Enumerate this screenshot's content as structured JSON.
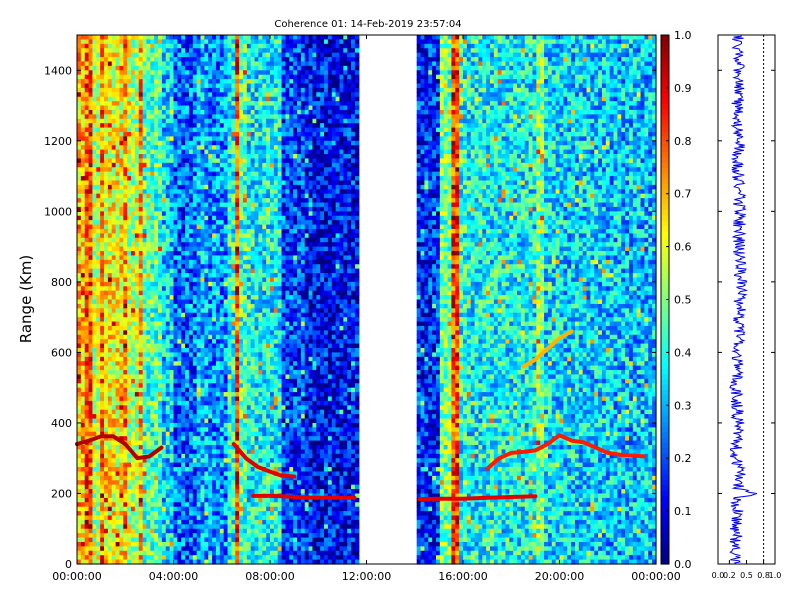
{
  "chart_data": [
    {
      "type": "heatmap",
      "title": "Coherence 01: 14-Feb-2019 23:57:04",
      "ylabel": "Range (Km)",
      "xlabel": "",
      "x_ticks": [
        "00:00:00",
        "04:00:00",
        "08:00:00",
        "12:00:00",
        "16:00:00",
        "20:00:00",
        "00:00:00"
      ],
      "y_ticks": [
        "0",
        "200",
        "400",
        "600",
        "800",
        "1000",
        "1200",
        "1400"
      ],
      "xlim_hours": [
        0,
        24
      ],
      "ylim": [
        0,
        1500
      ],
      "data_gap_hours": [
        11.75,
        14.1
      ],
      "colormap": "jet",
      "colorbar": {
        "range": [
          0,
          1
        ],
        "ticks": [
          "0.0",
          "0.1",
          "0.2",
          "0.3",
          "0.4",
          "0.5",
          "0.6",
          "0.7",
          "0.8",
          "0.9",
          "1.0"
        ]
      },
      "vertical_streaks": [
        {
          "start_h": 0.0,
          "end_h": 0.4,
          "value": 0.68
        },
        {
          "start_h": 0.4,
          "end_h": 0.6,
          "value": 0.8
        },
        {
          "start_h": 0.6,
          "end_h": 1.0,
          "value": 0.55
        },
        {
          "start_h": 1.0,
          "end_h": 1.2,
          "value": 0.78
        },
        {
          "start_h": 1.2,
          "end_h": 1.9,
          "value": 0.62
        },
        {
          "start_h": 1.9,
          "end_h": 2.1,
          "value": 0.72
        },
        {
          "start_h": 2.1,
          "end_h": 2.6,
          "value": 0.55
        },
        {
          "start_h": 2.6,
          "end_h": 2.8,
          "value": 0.7
        },
        {
          "start_h": 2.8,
          "end_h": 3.5,
          "value": 0.45
        },
        {
          "start_h": 3.5,
          "end_h": 4.0,
          "value": 0.34
        },
        {
          "start_h": 4.0,
          "end_h": 5.0,
          "value": 0.22
        },
        {
          "start_h": 5.0,
          "end_h": 5.4,
          "value": 0.3
        },
        {
          "start_h": 5.4,
          "end_h": 6.2,
          "value": 0.26
        },
        {
          "start_h": 6.2,
          "end_h": 6.5,
          "value": 0.4
        },
        {
          "start_h": 6.5,
          "end_h": 6.7,
          "value": 0.82
        },
        {
          "start_h": 6.7,
          "end_h": 7.0,
          "value": 0.45
        },
        {
          "start_h": 7.0,
          "end_h": 8.5,
          "value": 0.38
        },
        {
          "start_h": 8.5,
          "end_h": 9.5,
          "value": 0.18
        },
        {
          "start_h": 9.5,
          "end_h": 11.75,
          "value": 0.12
        },
        {
          "start_h": 14.1,
          "end_h": 15.0,
          "value": 0.16
        },
        {
          "start_h": 15.0,
          "end_h": 15.5,
          "value": 0.48
        },
        {
          "start_h": 15.5,
          "end_h": 15.9,
          "value": 0.82
        },
        {
          "start_h": 15.9,
          "end_h": 16.2,
          "value": 0.4
        },
        {
          "start_h": 16.2,
          "end_h": 19.0,
          "value": 0.38
        },
        {
          "start_h": 19.0,
          "end_h": 19.4,
          "value": 0.5
        },
        {
          "start_h": 19.4,
          "end_h": 20.0,
          "value": 0.36
        },
        {
          "start_h": 20.0,
          "end_h": 22.0,
          "value": 0.34
        },
        {
          "start_h": 22.0,
          "end_h": 24.0,
          "value": 0.32
        }
      ],
      "echo_traces": [
        {
          "value": 0.95,
          "points": [
            [
              0.0,
              340
            ],
            [
              0.5,
              350
            ],
            [
              1.0,
              362
            ],
            [
              1.5,
              362
            ],
            [
              2.0,
              340
            ],
            [
              2.5,
              300
            ],
            [
              3.0,
              305
            ],
            [
              3.5,
              330
            ]
          ]
        },
        {
          "value": 0.9,
          "points": [
            [
              6.5,
              340
            ],
            [
              7.0,
              300
            ],
            [
              7.5,
              275
            ],
            [
              8.0,
              262
            ],
            [
              8.5,
              250
            ],
            [
              9.0,
              248
            ]
          ]
        },
        {
          "value": 0.9,
          "points": [
            [
              7.3,
              193
            ],
            [
              8.0,
              193
            ],
            [
              8.5,
              192
            ],
            [
              9.0,
              190
            ],
            [
              10.0,
              188
            ],
            [
              11.5,
              188
            ]
          ]
        },
        {
          "value": 0.9,
          "points": [
            [
              14.2,
              184
            ],
            [
              15.0,
              185
            ],
            [
              16.0,
              185
            ],
            [
              17.0,
              188
            ],
            [
              18.0,
              190
            ],
            [
              19.0,
              192
            ]
          ]
        },
        {
          "value": 0.85,
          "points": [
            [
              17.0,
              270
            ],
            [
              17.5,
              300
            ],
            [
              18.0,
              315
            ],
            [
              18.5,
              318
            ],
            [
              19.0,
              322
            ],
            [
              19.5,
              340
            ],
            [
              20.0,
              365
            ],
            [
              20.5,
              350
            ],
            [
              21.0,
              345
            ],
            [
              21.5,
              330
            ],
            [
              22.0,
              315
            ],
            [
              22.5,
              310
            ],
            [
              23.5,
              305
            ]
          ]
        },
        {
          "value": 0.7,
          "points": [
            [
              18.5,
              560
            ],
            [
              19.0,
              580
            ],
            [
              19.5,
              610
            ],
            [
              20.0,
              640
            ],
            [
              20.5,
              660
            ]
          ]
        }
      ]
    },
    {
      "type": "line",
      "xlim": [
        0,
        1
      ],
      "x_ticks": [
        "0.0",
        "0.2",
        "0.5",
        "0.8",
        "1.0"
      ],
      "ylim": [
        0,
        1500
      ],
      "reference_line_x": 0.8,
      "grid": "vertical dotted at 0.8",
      "series": [
        {
          "color": "#0000ff",
          "range_km": [
            0,
            100,
            150,
            185,
            200,
            215,
            260,
            300,
            350,
            400,
            500,
            600,
            700,
            800,
            900,
            1000,
            1100,
            1200,
            1300,
            1400,
            1500
          ],
          "values": [
            0.3,
            0.32,
            0.34,
            0.3,
            0.72,
            0.35,
            0.38,
            0.3,
            0.33,
            0.36,
            0.32,
            0.36,
            0.38,
            0.4,
            0.37,
            0.38,
            0.35,
            0.36,
            0.34,
            0.37,
            0.35
          ]
        }
      ]
    }
  ]
}
